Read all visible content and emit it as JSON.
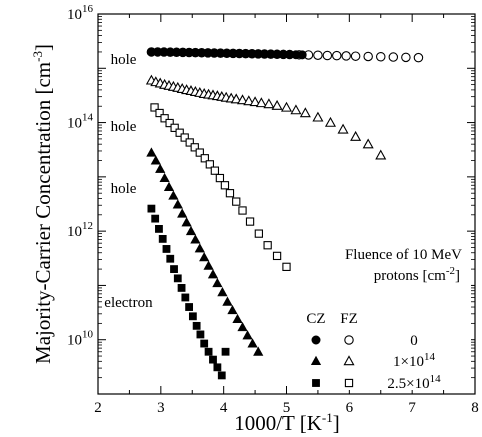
{
  "chart_data": {
    "type": "scatter",
    "title": "",
    "xlabel": "1000/T [K",
    "xlabel_sup": "-1",
    "xlabel_tail": "]",
    "ylabel": "Majority-Carrier Concentration [cm",
    "ylabel_sup": "-3",
    "ylabel_tail": "]",
    "x_scale": "linear",
    "y_scale": "log",
    "xlim": [
      2,
      8
    ],
    "ylim": [
      1000000000.0,
      1e+16
    ],
    "x_ticks": [
      {
        "value": 2,
        "label": "2"
      },
      {
        "value": 3,
        "label": "3"
      },
      {
        "value": 4,
        "label": "4"
      },
      {
        "value": 5,
        "label": "5"
      },
      {
        "value": 6,
        "label": "6"
      },
      {
        "value": 7,
        "label": "7"
      },
      {
        "value": 8,
        "label": "8"
      }
    ],
    "y_ticks": [
      {
        "value": 10000000000.0,
        "mantissa": "10",
        "exp": "10"
      },
      {
        "value": 1000000000000.0,
        "mantissa": "10",
        "exp": "12"
      },
      {
        "value": 100000000000000.0,
        "mantissa": "10",
        "exp": "14"
      },
      {
        "value": 1e+16,
        "mantissa": "10",
        "exp": "16"
      }
    ],
    "grid": false,
    "legend": {
      "title_line1": "Fluence of 10 MeV",
      "title_line2": "protons [cm",
      "title_line2_sup": "-2",
      "title_line2_tail": "]",
      "col_cz": "CZ",
      "col_fz": "FZ",
      "rows": [
        {
          "label": "0",
          "label_exp": "",
          "cz_marker": "circle",
          "fz_marker": "circle"
        },
        {
          "label": "1×10",
          "label_exp": "14",
          "cz_marker": "triangle",
          "fz_marker": "triangle"
        },
        {
          "label": "2.5×10",
          "label_exp": "14",
          "cz_marker": "square",
          "fz_marker": "square"
        }
      ]
    },
    "annotations": [
      {
        "text": "hole",
        "x": 2.2,
        "y": 1200000000000000.0
      },
      {
        "text": "hole",
        "x": 2.2,
        "y": 70000000000000.0
      },
      {
        "text": "hole",
        "x": 2.2,
        "y": 5000000000000.0
      },
      {
        "text": "electron",
        "x": 2.1,
        "y": 40000000000.0
      }
    ],
    "series": [
      {
        "sample": "FZ",
        "fluence": "0",
        "marker": "circle",
        "filled": false,
        "x": [
          2.85,
          2.95,
          3.05,
          3.15,
          3.25,
          3.35,
          3.45,
          3.55,
          3.65,
          3.75,
          3.85,
          3.95,
          4.05,
          4.15,
          4.25,
          4.35,
          4.45,
          4.55,
          4.65,
          4.75,
          4.85,
          4.95,
          5.05,
          5.2,
          5.35,
          5.5,
          5.65,
          5.8,
          5.95,
          6.1,
          6.3,
          6.5,
          6.7,
          6.9,
          7.1
        ],
        "y": [
          2000000000000000.0,
          2000000000000000.0,
          1990000000000000.0,
          1980000000000000.0,
          1970000000000000.0,
          1960000000000000.0,
          1950000000000000.0,
          1940000000000000.0,
          1930000000000000.0,
          1920000000000000.0,
          1910000000000000.0,
          1900000000000000.0,
          1890000000000000.0,
          1880000000000000.0,
          1870000000000000.0,
          1860000000000000.0,
          1850000000000000.0,
          1840000000000000.0,
          1830000000000000.0,
          1820000000000000.0,
          1810000000000000.0,
          1800000000000000.0,
          1790000000000000.0,
          1770000000000000.0,
          1760000000000000.0,
          1740000000000000.0,
          1720000000000000.0,
          1710000000000000.0,
          1690000000000000.0,
          1670000000000000.0,
          1650000000000000.0,
          1630000000000000.0,
          1610000000000000.0,
          1590000000000000.0,
          1570000000000000.0
        ]
      },
      {
        "sample": "FZ",
        "fluence": "1×10^14",
        "marker": "triangle",
        "filled": false,
        "x": [
          2.85,
          2.92,
          2.99,
          3.06,
          3.13,
          3.2,
          3.27,
          3.34,
          3.41,
          3.48,
          3.55,
          3.62,
          3.69,
          3.76,
          3.83,
          3.9,
          3.97,
          4.04,
          4.12,
          4.2,
          4.3,
          4.4,
          4.5,
          4.6,
          4.72,
          4.85,
          5.0,
          5.15,
          5.3,
          5.5,
          5.7,
          5.9,
          6.1,
          6.3,
          6.5
        ],
        "y": [
          600000000000000.0,
          560000000000000.0,
          530000000000000.0,
          500000000000000.0,
          480000000000000.0,
          460000000000000.0,
          440000000000000.0,
          420000000000000.0,
          400000000000000.0,
          385000000000000.0,
          370000000000000.0,
          355000000000000.0,
          340000000000000.0,
          330000000000000.0,
          320000000000000.0,
          310000000000000.0,
          300000000000000.0,
          290000000000000.0,
          280000000000000.0,
          270000000000000.0,
          260000000000000.0,
          250000000000000.0,
          240000000000000.0,
          230000000000000.0,
          220000000000000.0,
          205000000000000.0,
          190000000000000.0,
          170000000000000.0,
          150000000000000.0,
          125000000000000.0,
          100000000000000.0,
          75000000000000.0,
          55000000000000.0,
          40000000000000.0,
          25000000000000.0
        ]
      },
      {
        "sample": "FZ",
        "fluence": "2.5×10^14",
        "marker": "square",
        "filled": false,
        "x": [
          2.9,
          2.98,
          3.06,
          3.14,
          3.22,
          3.3,
          3.38,
          3.46,
          3.54,
          3.62,
          3.7,
          3.78,
          3.86,
          3.94,
          4.02,
          4.1,
          4.2,
          4.3,
          4.42,
          4.56,
          4.7,
          4.85,
          5.0
        ],
        "y": [
          190000000000000.0,
          150000000000000.0,
          120000000000000.0,
          98000000000000.0,
          80000000000000.0,
          65000000000000.0,
          53000000000000.0,
          43000000000000.0,
          35000000000000.0,
          28000000000000.0,
          22000000000000.0,
          17000000000000.0,
          13000000000000.0,
          9500000000000.0,
          7000000000000.0,
          5000000000000.0,
          3500000000000.0,
          2400000000000.0,
          1500000000000.0,
          900000000000.0,
          550000000000.0,
          350000000000.0,
          220000000000.0
        ]
      },
      {
        "sample": "CZ",
        "fluence": "0",
        "marker": "circle",
        "filled": true,
        "x": [
          2.85,
          2.95,
          3.05,
          3.15,
          3.25,
          3.35,
          3.45,
          3.55,
          3.65,
          3.75,
          3.85,
          3.95,
          4.05,
          4.15,
          4.25,
          4.35,
          4.45,
          4.55,
          4.65,
          4.75,
          4.85,
          4.95,
          5.05,
          5.15,
          5.25
        ],
        "y": [
          2000000000000000.0,
          2000000000000000.0,
          1990000000000000.0,
          1980000000000000.0,
          1970000000000000.0,
          1960000000000000.0,
          1950000000000000.0,
          1940000000000000.0,
          1930000000000000.0,
          1920000000000000.0,
          1910000000000000.0,
          1900000000000000.0,
          1890000000000000.0,
          1880000000000000.0,
          1870000000000000.0,
          1860000000000000.0,
          1850000000000000.0,
          1840000000000000.0,
          1830000000000000.0,
          1820000000000000.0,
          1810000000000000.0,
          1800000000000000.0,
          1790000000000000.0,
          1780000000000000.0,
          1770000000000000.0
        ]
      },
      {
        "sample": "CZ",
        "fluence": "1×10^14",
        "marker": "triangle",
        "filled": true,
        "x": [
          2.85,
          2.92,
          2.99,
          3.06,
          3.13,
          3.2,
          3.27,
          3.34,
          3.41,
          3.48,
          3.55,
          3.62,
          3.69,
          3.76,
          3.83,
          3.9,
          3.98,
          4.06,
          4.14,
          4.22,
          4.3,
          4.38,
          4.46,
          4.55
        ],
        "y": [
          28000000000000.0,
          20000000000000.0,
          14000000000000.0,
          9500000000000.0,
          6500000000000.0,
          4500000000000.0,
          3100000000000.0,
          2100000000000.0,
          1450000000000.0,
          1000000000000.0,
          700000000000.0,
          480000000000.0,
          330000000000.0,
          230000000000.0,
          160000000000.0,
          110000000000.0,
          75000000000.0,
          50000000000.0,
          35000000000.0,
          24000000000.0,
          17000000000.0,
          12000000000.0,
          8500000000.0,
          6000000000.0
        ]
      },
      {
        "sample": "CZ",
        "fluence": "2.5×10^14",
        "marker": "square",
        "filled": true,
        "x": [
          2.85,
          2.91,
          2.97,
          3.03,
          3.09,
          3.15,
          3.21,
          3.27,
          3.33,
          3.39,
          3.45,
          3.51,
          3.57,
          3.63,
          3.69,
          3.76,
          3.83,
          3.9,
          3.97,
          4.03
        ],
        "y": [
          2600000000000.0,
          1700000000000.0,
          1100000000000.0,
          720000000000.0,
          470000000000.0,
          310000000000.0,
          200000000000.0,
          135000000000.0,
          90000000000.0,
          60000000000.0,
          40000000000.0,
          27000000000.0,
          18000000000.0,
          12500000000.0,
          8500000000.0,
          6000000000.0,
          4300000000.0,
          3100000000.0,
          2200000000.0,
          6000000000.0
        ]
      }
    ]
  }
}
